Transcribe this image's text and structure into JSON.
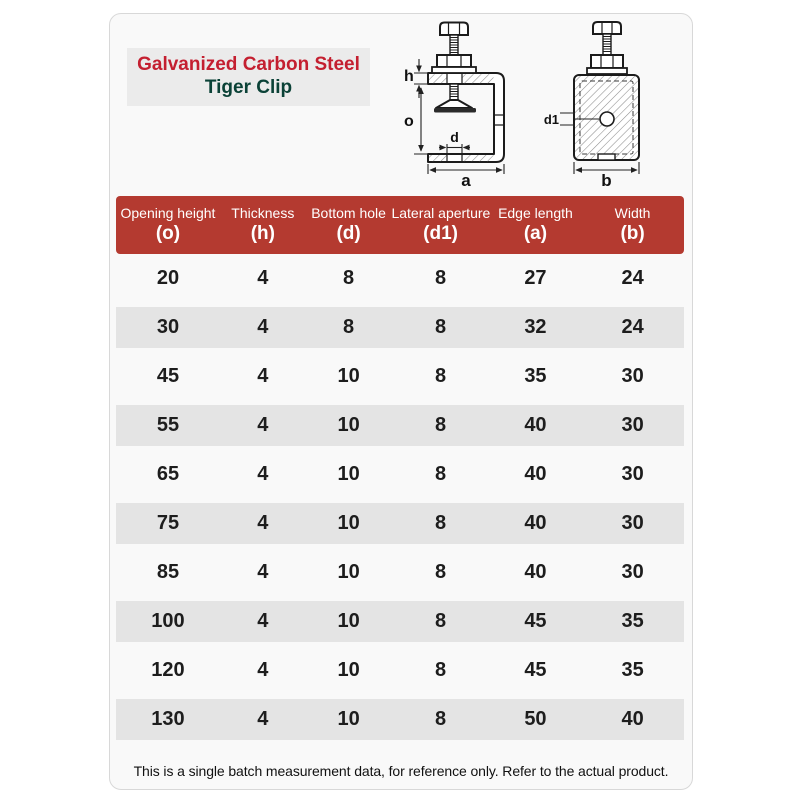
{
  "title": {
    "line1": "Galvanized Carbon Steel",
    "line2": "Tiger Clip"
  },
  "diagram": {
    "labels": {
      "h": "h",
      "o": "o",
      "d": "d",
      "a": "a",
      "d1": "d1",
      "b": "b"
    }
  },
  "table": {
    "headers": [
      {
        "name": "Opening height",
        "symbol": "(o)"
      },
      {
        "name": "Thickness",
        "symbol": "(h)"
      },
      {
        "name": "Bottom hole",
        "symbol": "(d)"
      },
      {
        "name": "Lateral aperture",
        "symbol": "(d1)"
      },
      {
        "name": "Edge length",
        "symbol": "(a)"
      },
      {
        "name": "Width",
        "symbol": "(b)"
      }
    ],
    "rows": [
      [
        20,
        4,
        8,
        8,
        27,
        24
      ],
      [
        30,
        4,
        8,
        8,
        32,
        24
      ],
      [
        45,
        4,
        10,
        8,
        35,
        30
      ],
      [
        55,
        4,
        10,
        8,
        40,
        30
      ],
      [
        65,
        4,
        10,
        8,
        40,
        30
      ],
      [
        75,
        4,
        10,
        8,
        40,
        30
      ],
      [
        85,
        4,
        10,
        8,
        40,
        30
      ],
      [
        100,
        4,
        10,
        8,
        45,
        35
      ],
      [
        120,
        4,
        10,
        8,
        45,
        35
      ],
      [
        130,
        4,
        10,
        8,
        50,
        40
      ]
    ]
  },
  "footer": {
    "note": "This is a single batch measurement data, for reference only. Refer to the actual product."
  },
  "colors": {
    "header_bg": "#b43a30",
    "title_red": "#c41f30",
    "title_green": "#0b4237",
    "row_alt": "#e4e4e4",
    "card_bg": "#f9f9f9"
  }
}
